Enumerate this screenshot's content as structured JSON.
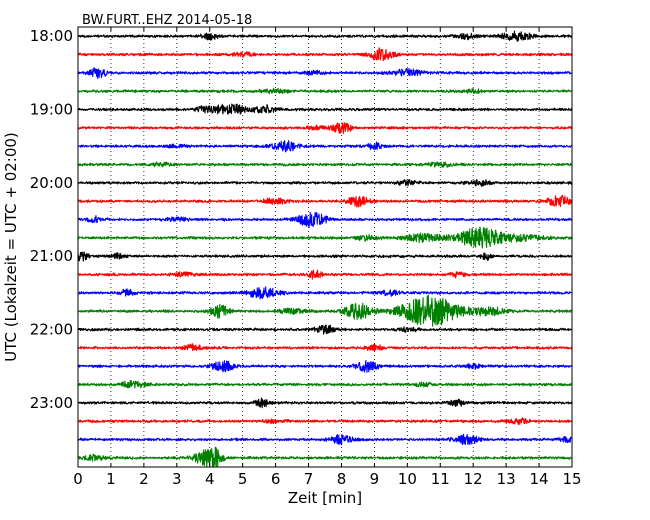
{
  "chart_data": {
    "type": "line",
    "title": "BW.FURT..EHZ 2014-05-18",
    "xlabel": "Zeit  [min]",
    "ylabel": "UTC (Lokalzeit = UTC + 02:00)",
    "xlim": [
      0,
      15
    ],
    "x_ticks": [
      "0",
      "1",
      "2",
      "3",
      "4",
      "5",
      "6",
      "7",
      "8",
      "9",
      "10",
      "11",
      "12",
      "13",
      "14",
      "15"
    ],
    "y_tick_labels": [
      "18:00",
      "19:00",
      "20:00",
      "21:00",
      "22:00",
      "23:00"
    ],
    "line_interval_minutes": 15,
    "grid": "vertical dotted, every 1 min",
    "series_colors": [
      "#000000",
      "#ff0000",
      "#0000ff",
      "#008000"
    ],
    "traces": [
      {
        "start": "18:00",
        "color": "#000000",
        "bursts": [
          [
            4.0,
            0.25,
            0.4
          ],
          [
            13.3,
            0.5,
            0.55
          ],
          [
            11.8,
            0.3,
            0.3
          ]
        ]
      },
      {
        "start": "18:15",
        "color": "#ff0000",
        "bursts": [
          [
            9.2,
            0.35,
            0.8
          ],
          [
            5.0,
            0.3,
            0.25
          ]
        ]
      },
      {
        "start": "18:30",
        "color": "#0000ff",
        "bursts": [
          [
            0.6,
            0.25,
            0.65
          ],
          [
            10.0,
            0.4,
            0.5
          ],
          [
            7.2,
            0.3,
            0.2
          ]
        ]
      },
      {
        "start": "18:45",
        "color": "#008000",
        "bursts": [
          [
            6.0,
            0.4,
            0.25
          ],
          [
            12.0,
            0.3,
            0.2
          ]
        ]
      },
      {
        "start": "19:00",
        "color": "#000000",
        "bursts": [
          [
            4.6,
            0.55,
            0.6
          ],
          [
            5.7,
            0.3,
            0.45
          ],
          [
            3.8,
            0.25,
            0.3
          ]
        ]
      },
      {
        "start": "19:15",
        "color": "#ff0000",
        "bursts": [
          [
            8.0,
            0.3,
            0.65
          ],
          [
            7.2,
            0.25,
            0.25
          ]
        ]
      },
      {
        "start": "19:30",
        "color": "#0000ff",
        "bursts": [
          [
            6.3,
            0.35,
            0.7
          ],
          [
            9.0,
            0.2,
            0.45
          ],
          [
            3.0,
            0.3,
            0.2
          ]
        ]
      },
      {
        "start": "19:45",
        "color": "#008000",
        "bursts": [
          [
            11.0,
            0.4,
            0.25
          ],
          [
            2.5,
            0.3,
            0.2
          ]
        ]
      },
      {
        "start": "20:00",
        "color": "#000000",
        "bursts": [
          [
            12.2,
            0.3,
            0.35
          ],
          [
            10.0,
            0.3,
            0.3
          ]
        ]
      },
      {
        "start": "20:15",
        "color": "#ff0000",
        "bursts": [
          [
            8.5,
            0.3,
            0.7
          ],
          [
            14.6,
            0.35,
            0.7
          ],
          [
            6.0,
            0.4,
            0.3
          ]
        ]
      },
      {
        "start": "20:30",
        "color": "#0000ff",
        "bursts": [
          [
            7.1,
            0.45,
            0.85
          ],
          [
            0.5,
            0.25,
            0.35
          ],
          [
            3.0,
            0.3,
            0.25
          ]
        ]
      },
      {
        "start": "20:45",
        "color": "#008000",
        "bursts": [
          [
            12.2,
            0.65,
            1.25
          ],
          [
            10.5,
            0.6,
            0.5
          ],
          [
            13.5,
            0.7,
            0.35
          ],
          [
            8.8,
            0.35,
            0.3
          ]
        ]
      },
      {
        "start": "21:00",
        "color": "#000000",
        "bursts": [
          [
            0.1,
            0.2,
            0.6
          ],
          [
            1.2,
            0.2,
            0.35
          ],
          [
            12.4,
            0.15,
            0.45
          ]
        ]
      },
      {
        "start": "21:15",
        "color": "#ff0000",
        "bursts": [
          [
            7.2,
            0.2,
            0.55
          ],
          [
            11.5,
            0.3,
            0.3
          ],
          [
            3.2,
            0.3,
            0.25
          ]
        ]
      },
      {
        "start": "21:30",
        "color": "#0000ff",
        "bursts": [
          [
            5.6,
            0.45,
            0.75
          ],
          [
            1.5,
            0.2,
            0.4
          ],
          [
            9.5,
            0.3,
            0.3
          ]
        ]
      },
      {
        "start": "21:45",
        "color": "#008000",
        "bursts": [
          [
            10.7,
            0.85,
            1.95
          ],
          [
            8.5,
            0.4,
            1.1
          ],
          [
            4.3,
            0.25,
            0.85
          ],
          [
            12.5,
            0.5,
            0.5
          ],
          [
            6.5,
            0.4,
            0.4
          ]
        ]
      },
      {
        "start": "22:00",
        "color": "#000000",
        "bursts": [
          [
            7.5,
            0.3,
            0.55
          ],
          [
            10.0,
            0.3,
            0.25
          ]
        ]
      },
      {
        "start": "22:15",
        "color": "#ff0000",
        "bursts": [
          [
            3.5,
            0.3,
            0.4
          ],
          [
            9.0,
            0.3,
            0.3
          ]
        ]
      },
      {
        "start": "22:30",
        "color": "#0000ff",
        "bursts": [
          [
            4.4,
            0.35,
            0.65
          ],
          [
            8.8,
            0.35,
            0.65
          ],
          [
            12.0,
            0.2,
            0.3
          ]
        ]
      },
      {
        "start": "22:45",
        "color": "#008000",
        "bursts": [
          [
            1.7,
            0.35,
            0.5
          ],
          [
            10.5,
            0.3,
            0.2
          ]
        ]
      },
      {
        "start": "23:00",
        "color": "#000000",
        "bursts": [
          [
            5.6,
            0.2,
            0.5
          ],
          [
            11.5,
            0.2,
            0.45
          ]
        ]
      },
      {
        "start": "23:15",
        "color": "#ff0000",
        "bursts": [
          [
            13.4,
            0.3,
            0.4
          ],
          [
            6.0,
            0.3,
            0.2
          ]
        ]
      },
      {
        "start": "23:30",
        "color": "#0000ff",
        "bursts": [
          [
            8.0,
            0.35,
            0.55
          ],
          [
            11.8,
            0.35,
            0.6
          ],
          [
            14.8,
            0.2,
            0.3
          ]
        ]
      },
      {
        "start": "23:45",
        "color": "#008000",
        "bursts": [
          [
            3.9,
            0.35,
            1.0
          ],
          [
            4.2,
            0.2,
            0.7
          ],
          [
            0.5,
            0.3,
            0.35
          ]
        ]
      }
    ]
  }
}
